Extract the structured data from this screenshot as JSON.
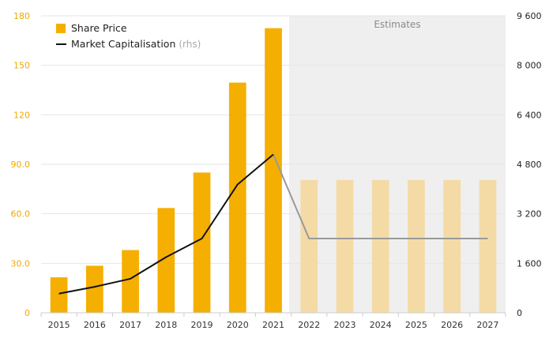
{
  "chart_data": {
    "type": "bar",
    "categories": [
      "2015",
      "2016",
      "2017",
      "2018",
      "2019",
      "2020",
      "2021",
      "2022",
      "2023",
      "2024",
      "2025",
      "2026",
      "2027"
    ],
    "series": [
      {
        "name": "Share Price",
        "kind": "bar",
        "axis": "left",
        "values": [
          21.5,
          28.5,
          38.0,
          63.5,
          85.0,
          139.5,
          172.5,
          80.5,
          80.5,
          80.5,
          80.5,
          80.5,
          80.5
        ],
        "color": "#F5AF00",
        "estimate_color": "#F4DBA6"
      },
      {
        "name": "Market Capitalisation",
        "name_suffix": "(rhs)",
        "kind": "line",
        "axis": "right",
        "values": [
          620,
          840,
          1100,
          1800,
          2400,
          4150,
          5120,
          2400,
          2400,
          2400,
          2400,
          2400,
          2400
        ],
        "color": "#111111",
        "estimate_color": "#999999"
      }
    ],
    "estimates_start_index": 7,
    "estimates_label": "Estimates",
    "y_left": {
      "lim": [
        0,
        180
      ],
      "ticks": [
        0,
        30,
        60,
        90,
        120,
        150,
        180
      ],
      "tick_labels": [
        "0",
        "30.0",
        "60.0",
        "90.0",
        "120",
        "150",
        "180"
      ]
    },
    "y_right": {
      "lim": [
        0,
        9600
      ],
      "ticks": [
        0,
        1600,
        3200,
        4800,
        6400,
        8000,
        9600
      ],
      "tick_labels": [
        "0",
        "1 600",
        "3 200",
        "4 800",
        "6 400",
        "8 000",
        "9 600"
      ]
    },
    "legend_position": "top-left",
    "grid": true,
    "colors": {
      "accent": "#F5AF00",
      "estimate_shade": "#EFEFEF",
      "grid": "#E6E6E6"
    }
  }
}
